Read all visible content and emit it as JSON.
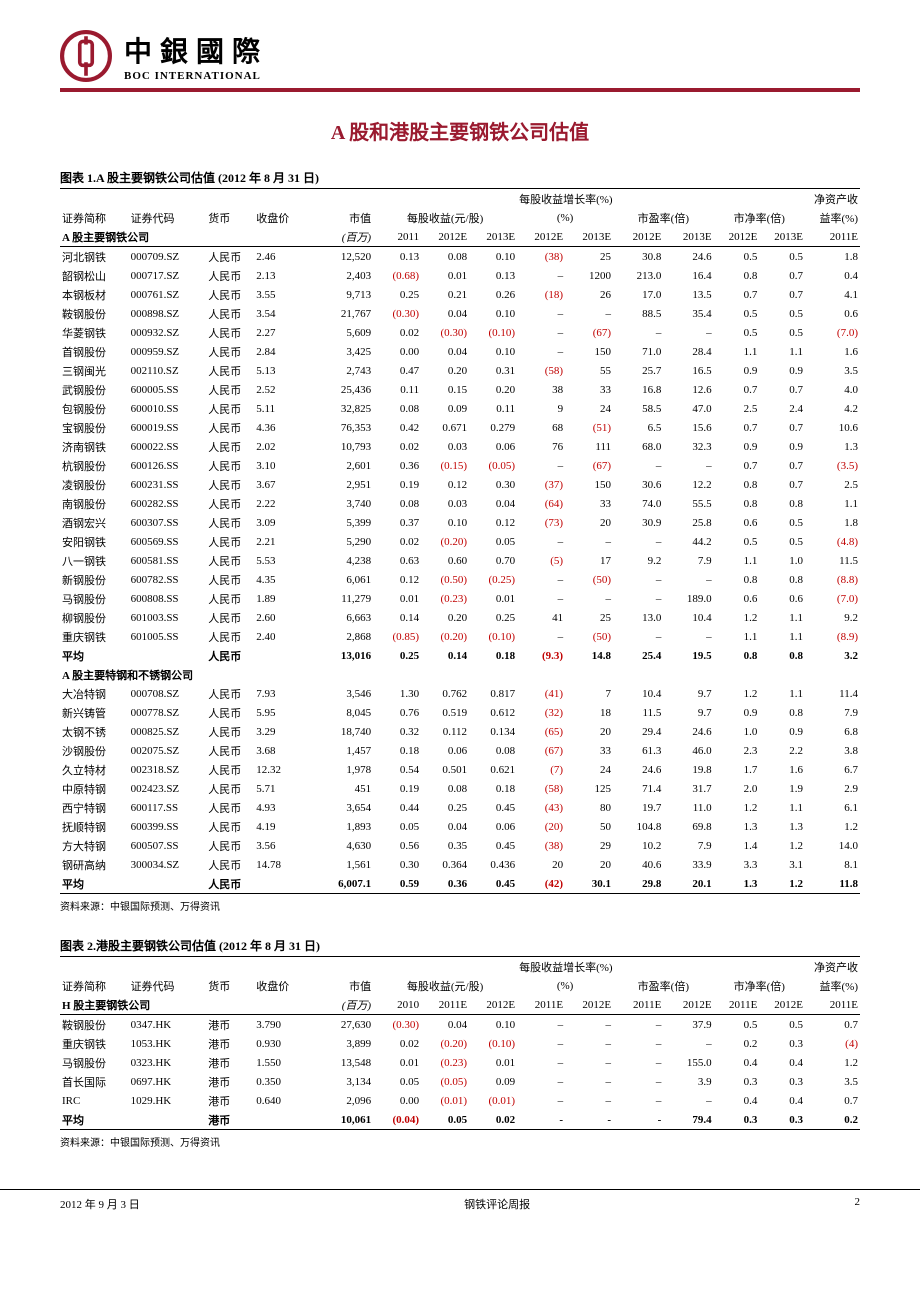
{
  "header": {
    "company_cn": "中銀國際",
    "company_en": "BOC INTERNATIONAL"
  },
  "main_title": "A 股和港股主要钢铁公司估值",
  "table1": {
    "caption": "图表 1.A 股主要钢铁公司估值 (2012 年 8 月 31 日)",
    "columns_top": {
      "name": "证券简称",
      "code": "证券代码",
      "currency": "货币",
      "price": "收盘价",
      "mktcap": "市值",
      "eps": "每股收益(元/股)",
      "growth": "每股收益增长率(%)",
      "pe": "市盈率(倍)",
      "pb": "市净率(倍)",
      "roe": "净资产收益率(%)"
    },
    "columns_bot": {
      "subA": "A 股主要钢铁公司",
      "mc_unit": "(百万)",
      "e1": "2011",
      "e2": "2012E",
      "e3": "2013E",
      "g1": "2012E",
      "g2": "2013E",
      "pe1": "2012E",
      "pe2": "2013E",
      "pb1": "2012E",
      "pb2": "2013E",
      "roe1": "2011E"
    },
    "sectionA_rows": [
      [
        "河北钢铁",
        "000709.SZ",
        "人民币",
        "2.46",
        "12,520",
        "0.13",
        "0.08",
        "0.10",
        "(38)",
        "25",
        "30.8",
        "24.6",
        "0.5",
        "0.5",
        "1.8"
      ],
      [
        "韶钢松山",
        "000717.SZ",
        "人民币",
        "2.13",
        "2,403",
        "(0.68)",
        "0.01",
        "0.13",
        "–",
        "1200",
        "213.0",
        "16.4",
        "0.8",
        "0.7",
        "0.4"
      ],
      [
        "本钢板材",
        "000761.SZ",
        "人民币",
        "3.55",
        "9,713",
        "0.25",
        "0.21",
        "0.26",
        "(18)",
        "26",
        "17.0",
        "13.5",
        "0.7",
        "0.7",
        "4.1"
      ],
      [
        "鞍钢股份",
        "000898.SZ",
        "人民币",
        "3.54",
        "21,767",
        "(0.30)",
        "0.04",
        "0.10",
        "–",
        "–",
        "88.5",
        "35.4",
        "0.5",
        "0.5",
        "0.6"
      ],
      [
        "华菱钢铁",
        "000932.SZ",
        "人民币",
        "2.27",
        "5,609",
        "0.02",
        "(0.30)",
        "(0.10)",
        "–",
        "(67)",
        "–",
        "–",
        "0.5",
        "0.5",
        "(7.0)"
      ],
      [
        "首钢股份",
        "000959.SZ",
        "人民币",
        "2.84",
        "3,425",
        "0.00",
        "0.04",
        "0.10",
        "–",
        "150",
        "71.0",
        "28.4",
        "1.1",
        "1.1",
        "1.6"
      ],
      [
        "三钢闽光",
        "002110.SZ",
        "人民币",
        "5.13",
        "2,743",
        "0.47",
        "0.20",
        "0.31",
        "(58)",
        "55",
        "25.7",
        "16.5",
        "0.9",
        "0.9",
        "3.5"
      ],
      [
        "武钢股份",
        "600005.SS",
        "人民币",
        "2.52",
        "25,436",
        "0.11",
        "0.15",
        "0.20",
        "38",
        "33",
        "16.8",
        "12.6",
        "0.7",
        "0.7",
        "4.0"
      ],
      [
        "包钢股份",
        "600010.SS",
        "人民币",
        "5.11",
        "32,825",
        "0.08",
        "0.09",
        "0.11",
        "9",
        "24",
        "58.5",
        "47.0",
        "2.5",
        "2.4",
        "4.2"
      ],
      [
        "宝钢股份",
        "600019.SS",
        "人民币",
        "4.36",
        "76,353",
        "0.42",
        "0.671",
        "0.279",
        "68",
        "(51)",
        "6.5",
        "15.6",
        "0.7",
        "0.7",
        "10.6"
      ],
      [
        "济南钢铁",
        "600022.SS",
        "人民币",
        "2.02",
        "10,793",
        "0.02",
        "0.03",
        "0.06",
        "76",
        "111",
        "68.0",
        "32.3",
        "0.9",
        "0.9",
        "1.3"
      ],
      [
        "杭钢股份",
        "600126.SS",
        "人民币",
        "3.10",
        "2,601",
        "0.36",
        "(0.15)",
        "(0.05)",
        "–",
        "(67)",
        "–",
        "–",
        "0.7",
        "0.7",
        "(3.5)"
      ],
      [
        "凌钢股份",
        "600231.SS",
        "人民币",
        "3.67",
        "2,951",
        "0.19",
        "0.12",
        "0.30",
        "(37)",
        "150",
        "30.6",
        "12.2",
        "0.8",
        "0.7",
        "2.5"
      ],
      [
        "南钢股份",
        "600282.SS",
        "人民币",
        "2.22",
        "3,740",
        "0.08",
        "0.03",
        "0.04",
        "(64)",
        "33",
        "74.0",
        "55.5",
        "0.8",
        "0.8",
        "1.1"
      ],
      [
        "酒钢宏兴",
        "600307.SS",
        "人民币",
        "3.09",
        "5,399",
        "0.37",
        "0.10",
        "0.12",
        "(73)",
        "20",
        "30.9",
        "25.8",
        "0.6",
        "0.5",
        "1.8"
      ],
      [
        "安阳钢铁",
        "600569.SS",
        "人民币",
        "2.21",
        "5,290",
        "0.02",
        "(0.20)",
        "0.05",
        "–",
        "–",
        "–",
        "44.2",
        "0.5",
        "0.5",
        "(4.8)"
      ],
      [
        "八一钢铁",
        "600581.SS",
        "人民币",
        "5.53",
        "4,238",
        "0.63",
        "0.60",
        "0.70",
        "(5)",
        "17",
        "9.2",
        "7.9",
        "1.1",
        "1.0",
        "11.5"
      ],
      [
        "新钢股份",
        "600782.SS",
        "人民币",
        "4.35",
        "6,061",
        "0.12",
        "(0.50)",
        "(0.25)",
        "–",
        "(50)",
        "–",
        "–",
        "0.8",
        "0.8",
        "(8.8)"
      ],
      [
        "马钢股份",
        "600808.SS",
        "人民币",
        "1.89",
        "11,279",
        "0.01",
        "(0.23)",
        "0.01",
        "–",
        "–",
        "–",
        "189.0",
        "0.6",
        "0.6",
        "(7.0)"
      ],
      [
        "柳钢股份",
        "601003.SS",
        "人民币",
        "2.60",
        "6,663",
        "0.14",
        "0.20",
        "0.25",
        "41",
        "25",
        "13.0",
        "10.4",
        "1.2",
        "1.1",
        "9.2"
      ],
      [
        "重庆钢铁",
        "601005.SS",
        "人民币",
        "2.40",
        "2,868",
        "(0.85)",
        "(0.20)",
        "(0.10)",
        "–",
        "(50)",
        "–",
        "–",
        "1.1",
        "1.1",
        "(8.9)"
      ]
    ],
    "avgA": [
      "平均",
      "",
      "人民币",
      "",
      "13,016",
      "0.25",
      "0.14",
      "0.18",
      "(9.3)",
      "14.8",
      "25.4",
      "19.5",
      "0.8",
      "0.8",
      "3.2"
    ],
    "subB_label": "A 股主要特钢和不锈钢公司",
    "sectionB_rows": [
      [
        "大冶特钢",
        "000708.SZ",
        "人民币",
        "7.93",
        "3,546",
        "1.30",
        "0.762",
        "0.817",
        "(41)",
        "7",
        "10.4",
        "9.7",
        "1.2",
        "1.1",
        "11.4"
      ],
      [
        "新兴铸管",
        "000778.SZ",
        "人民币",
        "5.95",
        "8,045",
        "0.76",
        "0.519",
        "0.612",
        "(32)",
        "18",
        "11.5",
        "9.7",
        "0.9",
        "0.8",
        "7.9"
      ],
      [
        "太钢不锈",
        "000825.SZ",
        "人民币",
        "3.29",
        "18,740",
        "0.32",
        "0.112",
        "0.134",
        "(65)",
        "20",
        "29.4",
        "24.6",
        "1.0",
        "0.9",
        "6.8"
      ],
      [
        "沙钢股份",
        "002075.SZ",
        "人民币",
        "3.68",
        "1,457",
        "0.18",
        "0.06",
        "0.08",
        "(67)",
        "33",
        "61.3",
        "46.0",
        "2.3",
        "2.2",
        "3.8"
      ],
      [
        "久立特材",
        "002318.SZ",
        "人民币",
        "12.32",
        "1,978",
        "0.54",
        "0.501",
        "0.621",
        "(7)",
        "24",
        "24.6",
        "19.8",
        "1.7",
        "1.6",
        "6.7"
      ],
      [
        "中原特钢",
        "002423.SZ",
        "人民币",
        "5.71",
        "451",
        "0.19",
        "0.08",
        "0.18",
        "(58)",
        "125",
        "71.4",
        "31.7",
        "2.0",
        "1.9",
        "2.9"
      ],
      [
        "西宁特钢",
        "600117.SS",
        "人民币",
        "4.93",
        "3,654",
        "0.44",
        "0.25",
        "0.45",
        "(43)",
        "80",
        "19.7",
        "11.0",
        "1.2",
        "1.1",
        "6.1"
      ],
      [
        "抚顺特钢",
        "600399.SS",
        "人民币",
        "4.19",
        "1,893",
        "0.05",
        "0.04",
        "0.06",
        "(20)",
        "50",
        "104.8",
        "69.8",
        "1.3",
        "1.3",
        "1.2"
      ],
      [
        "方大特钢",
        "600507.SS",
        "人民币",
        "3.56",
        "4,630",
        "0.56",
        "0.35",
        "0.45",
        "(38)",
        "29",
        "10.2",
        "7.9",
        "1.4",
        "1.2",
        "14.0"
      ],
      [
        "钢研高纳",
        "300034.SZ",
        "人民币",
        "14.78",
        "1,561",
        "0.30",
        "0.364",
        "0.436",
        "20",
        "20",
        "40.6",
        "33.9",
        "3.3",
        "3.1",
        "8.1"
      ]
    ],
    "avgB": [
      "平均",
      "",
      "人民币",
      "",
      "6,007.1",
      "0.59",
      "0.36",
      "0.45",
      "(42)",
      "30.1",
      "29.8",
      "20.1",
      "1.3",
      "1.2",
      "11.8"
    ],
    "source": "资料来源：中银国际预测、万得资讯"
  },
  "table2": {
    "caption": "图表 2.港股主要钢铁公司估值 (2012 年 8 月 31 日)",
    "columns_bot": {
      "subH": "H 股主要钢铁公司",
      "e1": "2010",
      "e2": "2011E",
      "e3": "2012E",
      "g1": "2011E",
      "g2": "2012E",
      "pe1": "2011E",
      "pe2": "2012E",
      "pb1": "2011E",
      "pb2": "2012E",
      "roe1": "2011E"
    },
    "rows": [
      [
        "鞍钢股份",
        "0347.HK",
        "港币",
        "3.790",
        "27,630",
        "(0.30)",
        "0.04",
        "0.10",
        "–",
        "–",
        "–",
        "37.9",
        "0.5",
        "0.5",
        "0.7"
      ],
      [
        "重庆钢铁",
        "1053.HK",
        "港币",
        "0.930",
        "3,899",
        "0.02",
        "(0.20)",
        "(0.10)",
        "–",
        "–",
        "–",
        "–",
        "0.2",
        "0.3",
        "(4)"
      ],
      [
        "马钢股份",
        "0323.HK",
        "港币",
        "1.550",
        "13,548",
        "0.01",
        "(0.23)",
        "0.01",
        "–",
        "–",
        "–",
        "155.0",
        "0.4",
        "0.4",
        "1.2"
      ],
      [
        "首长国际",
        "0697.HK",
        "港币",
        "0.350",
        "3,134",
        "0.05",
        "(0.05)",
        "0.09",
        "–",
        "–",
        "–",
        "3.9",
        "0.3",
        "0.3",
        "3.5"
      ],
      [
        "IRC",
        "1029.HK",
        "港币",
        "0.640",
        "2,096",
        "0.00",
        "(0.01)",
        "(0.01)",
        "–",
        "–",
        "–",
        "–",
        "0.4",
        "0.4",
        "0.7"
      ]
    ],
    "avg": [
      "平均",
      "",
      "港币",
      "",
      "10,061",
      "(0.04)",
      "0.05",
      "0.02",
      "-",
      "-",
      "-",
      "79.4",
      "0.3",
      "0.3",
      "0.2"
    ],
    "source": "资料来源：中银国际预测、万得资讯"
  },
  "footer": {
    "date": "2012 年 9 月 3 日",
    "title": "钢铁评论周报",
    "page": "2"
  }
}
